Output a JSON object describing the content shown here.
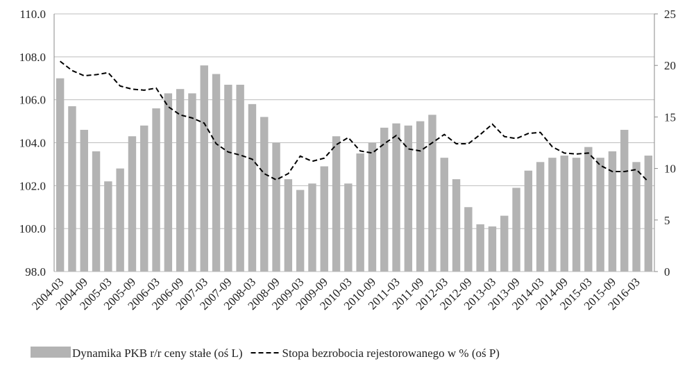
{
  "chart_data": {
    "type": "bar_line",
    "categories": [
      "2004-03",
      null,
      "2004-09",
      null,
      "2005-03",
      null,
      "2005-09",
      null,
      "2006-03",
      null,
      "2006-09",
      null,
      "2007-03",
      null,
      "2007-09",
      null,
      "2008-03",
      null,
      "2008-09",
      null,
      "2009-03",
      null,
      "2009-09",
      null,
      "2010-03",
      null,
      "2010-09",
      null,
      "2011-03",
      null,
      "2011-09",
      null,
      "2012-03",
      null,
      "2012-09",
      null,
      "2013-03",
      null,
      "2013-09",
      null,
      "2014-03",
      null,
      "2014-09",
      null,
      "2015-03",
      null,
      "2015-09",
      null,
      "2016-03",
      null
    ],
    "series": [
      {
        "name": "Dynamika PKB r/r ceny stałe (oś L)",
        "type": "bar",
        "color": "#b3b3b3",
        "values": [
          107.0,
          105.7,
          104.6,
          103.6,
          102.2,
          102.8,
          104.3,
          104.8,
          105.6,
          106.3,
          106.5,
          106.3,
          107.6,
          107.2,
          106.7,
          106.7,
          105.8,
          105.2,
          104.0,
          102.3,
          101.8,
          102.1,
          102.9,
          104.3,
          102.1,
          103.5,
          104.0,
          104.7,
          104.9,
          104.8,
          105.0,
          105.3,
          103.3,
          102.3,
          101.0,
          100.2,
          100.1,
          100.6,
          101.9,
          102.7,
          103.1,
          103.3,
          103.4,
          103.3,
          103.8,
          103.3,
          103.6,
          104.6,
          103.1,
          103.4
        ]
      },
      {
        "name": "Stopa bezrobocia rejestorowanego w % (oś P)",
        "type": "line",
        "axis": "y2",
        "color": "#000000",
        "dashed": true,
        "values": [
          20.4,
          19.5,
          19.0,
          19.1,
          19.3,
          18.0,
          17.7,
          17.6,
          17.8,
          16.0,
          15.2,
          14.9,
          14.4,
          12.4,
          11.6,
          11.3,
          10.9,
          9.5,
          8.9,
          9.5,
          11.2,
          10.7,
          11.0,
          12.3,
          13.0,
          11.7,
          11.5,
          12.4,
          13.2,
          11.9,
          11.7,
          12.5,
          13.3,
          12.4,
          12.4,
          13.3,
          14.3,
          13.1,
          12.9,
          13.4,
          13.5,
          12.1,
          11.5,
          11.4,
          11.5,
          10.3,
          9.7,
          9.7,
          9.9,
          8.7
        ]
      }
    ],
    "ylim": [
      98,
      110
    ],
    "yticks": [
      {
        "value": 98,
        "label": "98.0"
      },
      {
        "value": 100,
        "label": "100.0"
      },
      {
        "value": 102,
        "label": "102.0"
      },
      {
        "value": 104,
        "label": "104.0"
      },
      {
        "value": 106,
        "label": "106.0"
      },
      {
        "value": 108,
        "label": "108.0"
      },
      {
        "value": 110,
        "label": "110.0"
      }
    ],
    "y2lim": [
      0,
      25
    ],
    "y2ticks": [
      0,
      5,
      10,
      15,
      20,
      25
    ],
    "grid": true
  }
}
